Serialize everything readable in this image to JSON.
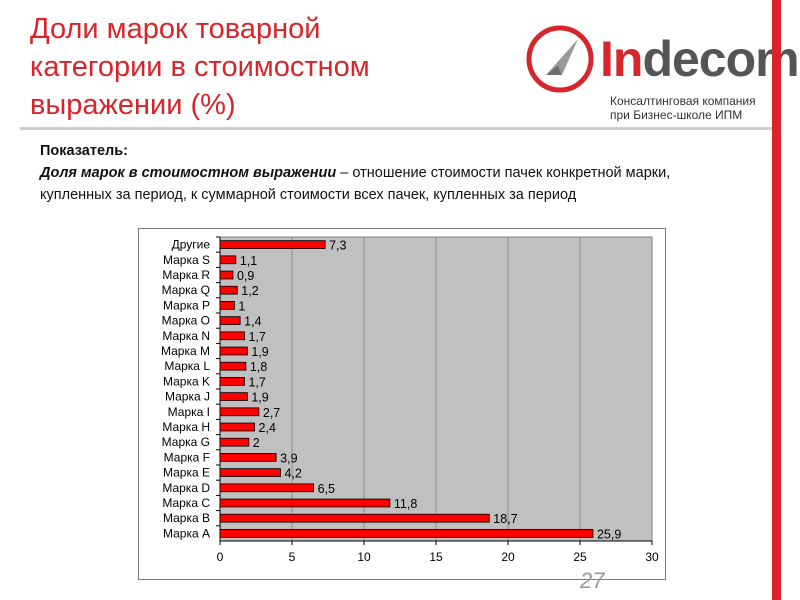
{
  "title": "Доли марок товарной\nкатегории в стоимостном\nвыражении (%)",
  "logo": {
    "name_accent": "In",
    "name_rest": "decom",
    "tagline_line1": "Консалтинговая компания",
    "tagline_line2": "при Бизнес-школе ИПМ"
  },
  "description": {
    "label": "Показатель:",
    "term": "Доля марок в стоимостном выражении",
    "text": " – отношение стоимости пачек конкретной марки, купленных за период, к суммарной стоимости всех пачек, купленных за период"
  },
  "page_number": "27",
  "colors": {
    "accent": "#d7262b",
    "bar": "#ff0000",
    "plot_bg": "#c0c0c0"
  },
  "chart_data": {
    "type": "bar",
    "orientation": "horizontal",
    "categories": [
      "Другие",
      "Марка S",
      "Марка R",
      "Марка Q",
      "Марка P",
      "Марка O",
      "Марка N",
      "Марка M",
      "Марка L",
      "Марка K",
      "Марка J",
      "Марка I",
      "Марка H",
      "Марка G",
      "Марка F",
      "Марка E",
      "Марка D",
      "Марка C",
      "Марка B",
      "Марка A"
    ],
    "values": [
      7.3,
      1.1,
      0.9,
      1.2,
      1,
      1.4,
      1.7,
      1.9,
      1.8,
      1.7,
      1.9,
      2.7,
      2.4,
      2,
      3.9,
      4.2,
      6.5,
      11.8,
      18.7,
      25.9
    ],
    "value_labels": [
      "7,3",
      "1,1",
      "0,9",
      "1,2",
      "1",
      "1,4",
      "1,7",
      "1,9",
      "1,8",
      "1,7",
      "1,9",
      "2,7",
      "2,4",
      "2",
      "3,9",
      "4,2",
      "6,5",
      "11,8",
      "18,7",
      "25,9"
    ],
    "xlim": [
      0,
      30
    ],
    "xticks": [
      0,
      5,
      10,
      15,
      20,
      25,
      30
    ],
    "xtick_labels": [
      "0",
      "5",
      "10",
      "15",
      "20",
      "25",
      "30"
    ],
    "grid": true,
    "legend": "none",
    "title": "",
    "xlabel": "",
    "ylabel": ""
  }
}
